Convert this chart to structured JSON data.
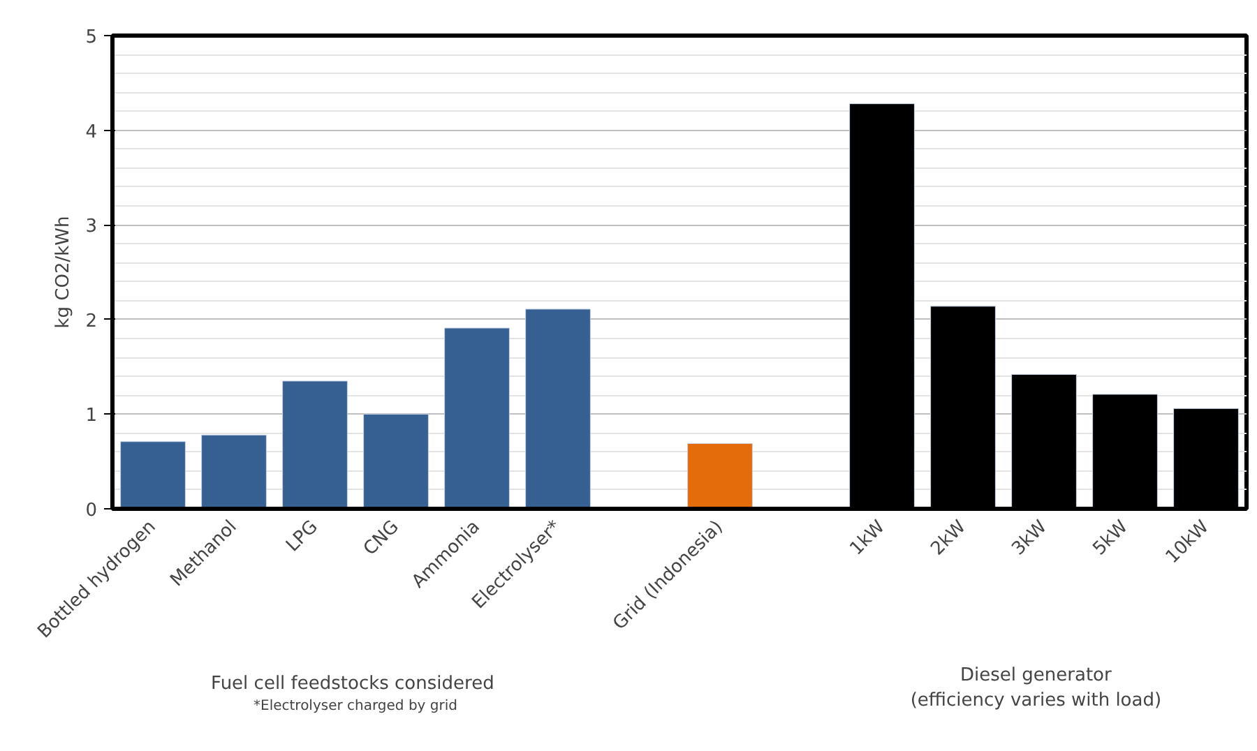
{
  "chart_data": {
    "type": "bar",
    "ylabel": "kg CO2/kWh",
    "categories": [
      "Bottled hydrogen",
      "Methanol",
      "LPG",
      "CNG",
      "Ammonia",
      "Electrolyser*",
      null,
      "Grid (Indonesia)",
      null,
      "1kW",
      "2kW",
      "3kW",
      "5kW",
      "10kW"
    ],
    "values": [
      0.71,
      0.78,
      1.35,
      1.0,
      1.91,
      2.11,
      null,
      0.69,
      null,
      4.28,
      2.14,
      1.42,
      1.21,
      1.06
    ],
    "colors": [
      "#376092",
      "#376092",
      "#376092",
      "#376092",
      "#376092",
      "#376092",
      null,
      "#e46c0a",
      null,
      "#000000",
      "#000000",
      "#000000",
      "#000000",
      "#000000"
    ],
    "ylim": [
      0,
      5
    ],
    "yticks": [
      0,
      1,
      2,
      3,
      4,
      5
    ],
    "grid": "y",
    "annotations": [
      "Fuel cell feedstocks  considered",
      "*Electrolyser charged by grid",
      "Diesel generator\n(efficiency varies with load)"
    ]
  }
}
